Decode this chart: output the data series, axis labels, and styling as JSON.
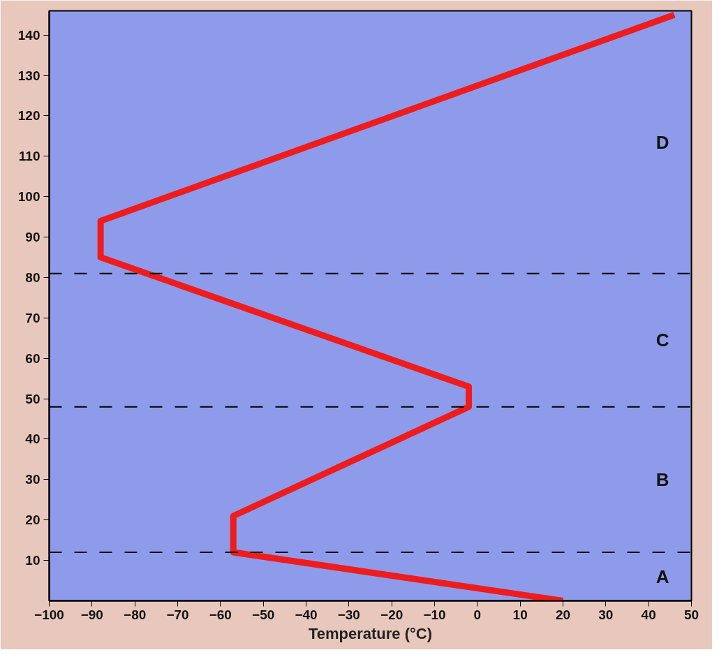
{
  "chart_data": {
    "type": "line",
    "xlabel": "Temperature (°C)",
    "x": [
      20,
      -57,
      -57,
      -2,
      -2,
      -88,
      -88,
      46
    ],
    "series": [
      {
        "color": "#ee1c1c",
        "values": [
          0,
          12,
          21,
          48,
          53,
          85,
          94,
          145
        ]
      }
    ],
    "xlim": [
      -100,
      50
    ],
    "ylim": [
      0,
      146
    ],
    "xticks": [
      -100,
      -90,
      -80,
      -70,
      -60,
      -50,
      -40,
      -30,
      -20,
      -10,
      0,
      10,
      20,
      30,
      40,
      50
    ],
    "yticks": [
      10,
      20,
      30,
      40,
      50,
      60,
      70,
      80,
      90,
      100,
      110,
      120,
      130,
      140
    ],
    "ref_lines": [
      {
        "axis": "y",
        "value": 12,
        "color": "#000000",
        "line_style": "dashed"
      },
      {
        "axis": "y",
        "value": 48,
        "color": "#000000",
        "line_style": "dashed"
      },
      {
        "axis": "y",
        "value": 81,
        "color": "#000000",
        "line_style": "dashed"
      }
    ],
    "annotations": [
      "A",
      "B",
      "C",
      "D"
    ],
    "grid": false,
    "marker": "none",
    "line_style": "solid"
  }
}
